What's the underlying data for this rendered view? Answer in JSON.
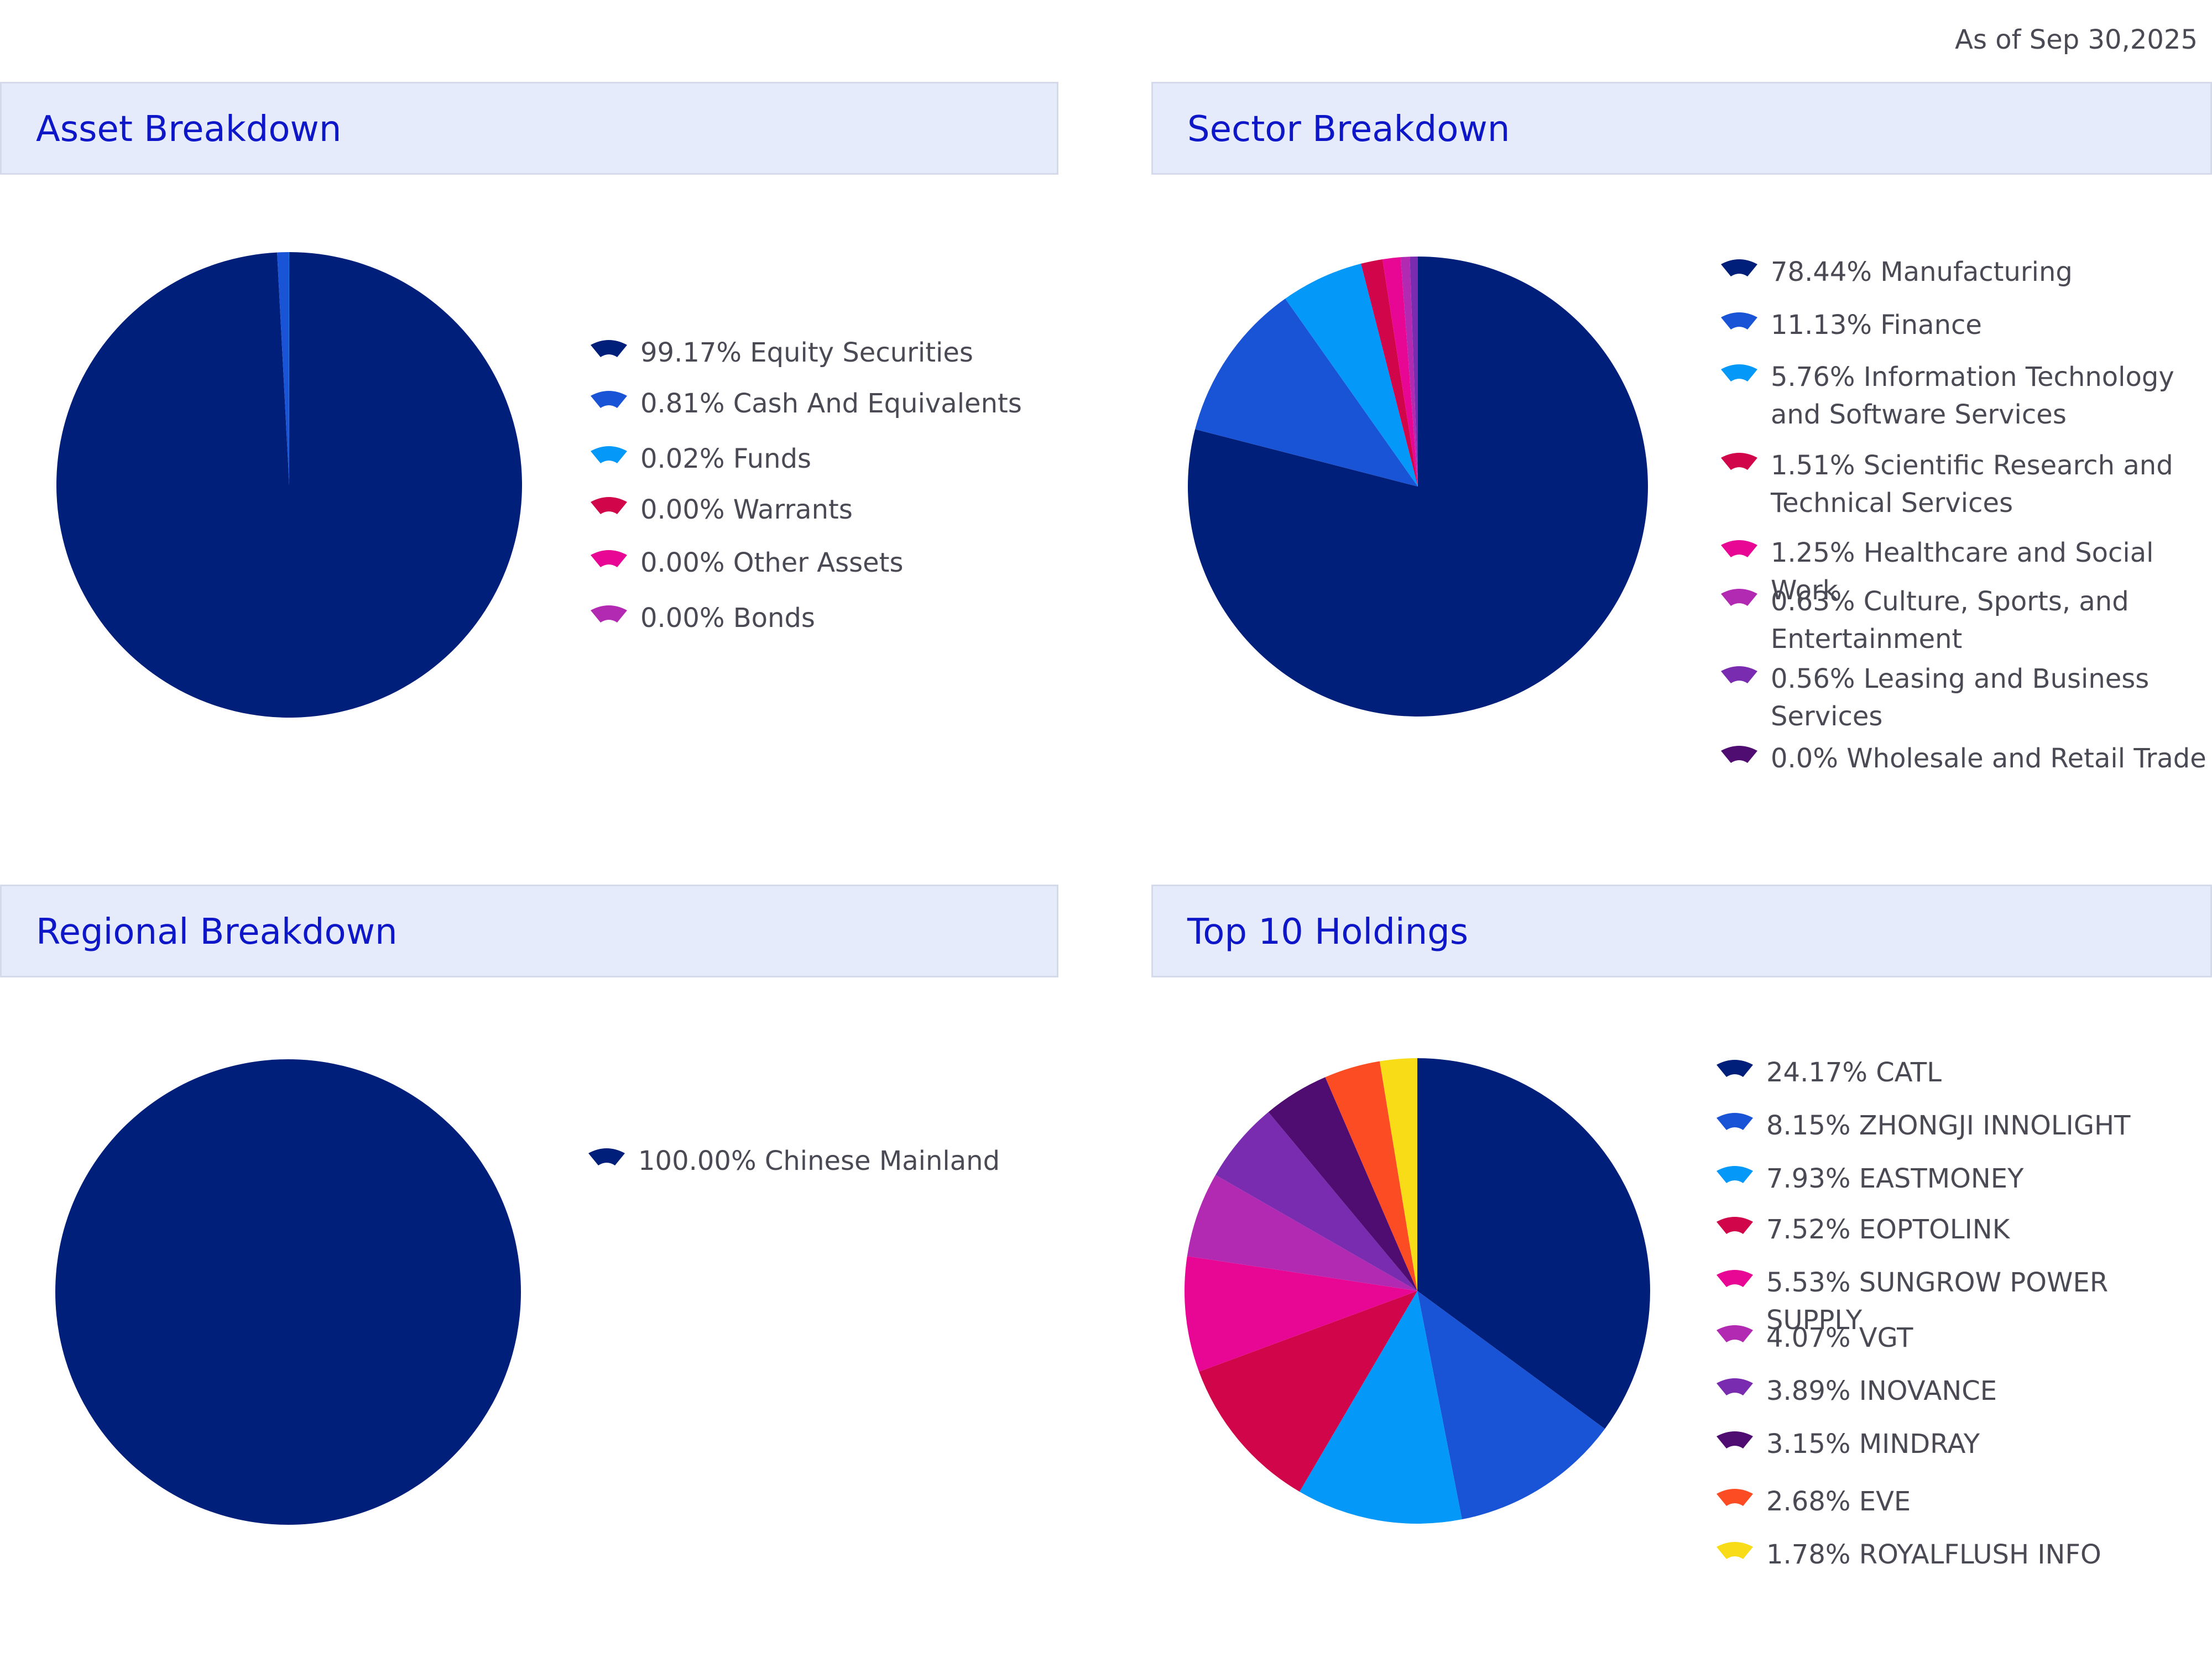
{
  "as_of": "As of Sep 30,2025",
  "chart_data": [
    {
      "type": "pie",
      "title": "Asset Breakdown",
      "labels": [
        "Equity Securities",
        "Cash And Equivalents",
        "Funds",
        "Warrants",
        "Other Assets",
        "Bonds"
      ],
      "values": [
        99.17,
        0.81,
        0.02,
        0.0,
        0.0,
        0.0
      ],
      "legend": [
        "99.17% Equity Securities",
        "0.81% Cash And Equivalents",
        "0.02% Funds",
        "0.00% Warrants",
        "0.00% Other Assets",
        "0.00% Bonds"
      ],
      "colors": [
        "#001f7a",
        "#1a54d6",
        "#0499f8",
        "#d1064a",
        "#e80694",
        "#b22ab2"
      ]
    },
    {
      "type": "pie",
      "title": "Sector Breakdown",
      "labels": [
        "Manufacturing",
        "Finance",
        "Information Technology and Software Services",
        "Scientific Research and Technical Services",
        "Healthcare and Social Work",
        "Culture, Sports, and Entertainment",
        "Leasing and Business Services",
        "Wholesale and Retail Trade"
      ],
      "values": [
        78.44,
        11.13,
        5.76,
        1.51,
        1.25,
        0.63,
        0.56,
        0.0
      ],
      "legend": [
        "78.44% Manufacturing",
        "11.13% Finance",
        "5.76% Information Technology and Software Services",
        "1.51% Scientific Research and Technical Services",
        "1.25% Healthcare and Social Work",
        "0.63% Culture, Sports, and Entertainment",
        "0.56% Leasing and Business Services",
        "0.0% Wholesale and Retail Trade"
      ],
      "colors": [
        "#001f7a",
        "#1a54d6",
        "#0499f8",
        "#d1064a",
        "#e80694",
        "#b22ab2",
        "#7a2cb0",
        "#4f0d72"
      ]
    },
    {
      "type": "pie",
      "title": "Regional Breakdown",
      "labels": [
        "Chinese Mainland"
      ],
      "values": [
        100.0
      ],
      "legend": [
        "100.00% Chinese Mainland"
      ],
      "colors": [
        "#001f7a"
      ]
    },
    {
      "type": "pie",
      "title": "Top 10 Holdings",
      "labels": [
        "CATL",
        "ZHONGJI INNOLIGHT",
        "EASTMONEY",
        "EOPTOLINK",
        "SUNGROW POWER SUPPLY",
        "VGT",
        "INOVANCE",
        "MINDRAY",
        "EVE",
        "ROYALFLUSH INFO"
      ],
      "values": [
        24.17,
        8.15,
        7.93,
        7.52,
        5.53,
        4.07,
        3.89,
        3.15,
        2.68,
        1.78
      ],
      "legend": [
        "24.17% CATL",
        "8.15% ZHONGJI INNOLIGHT",
        "7.93% EASTMONEY",
        "7.52% EOPTOLINK",
        "5.53% SUNGROW POWER SUPPLY",
        "4.07% VGT",
        "3.89% INOVANCE",
        "3.15% MINDRAY",
        "2.68% EVE",
        "1.78% ROYALFLUSH INFO"
      ],
      "colors": [
        "#001f7a",
        "#1a54d6",
        "#0499f8",
        "#d1064a",
        "#e80694",
        "#b22ab2",
        "#7a2cb0",
        "#4f0d72",
        "#fc4c24",
        "#f8dc18"
      ]
    }
  ]
}
